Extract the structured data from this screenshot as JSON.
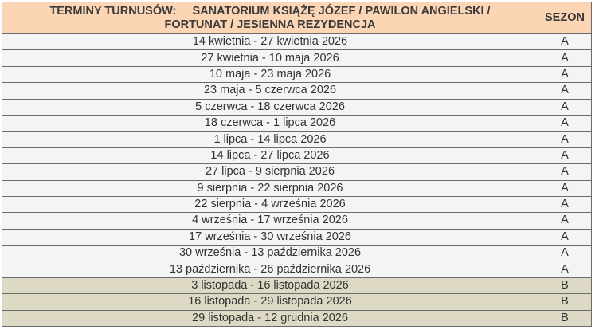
{
  "table": {
    "header": {
      "col1": "TERMINY TURNUSÓW:     SANATORIUM KSIĄŻĘ JÓZEF / PAWILON ANGIELSKI / FORTUNAT / JESIENNA REZYDENCJA",
      "col2": "SEZON"
    },
    "colors": {
      "header_bg": "#fcd5b4",
      "season_a_bg": "#f4f4f4",
      "season_b_bg": "#ddd9c4"
    },
    "rows": [
      {
        "dates": "14 kwietnia - 27 kwietnia 2026",
        "season": "A"
      },
      {
        "dates": "27 kwietnia - 10 maja 2026",
        "season": "A"
      },
      {
        "dates": "10 maja - 23 maja 2026",
        "season": "A"
      },
      {
        "dates": "23 maja - 5 czerwca 2026",
        "season": "A"
      },
      {
        "dates": "5 czerwca - 18 czerwca 2026",
        "season": "A"
      },
      {
        "dates": "18 czerwca - 1 lipca 2026",
        "season": "A"
      },
      {
        "dates": "1 lipca - 14 lipca 2026",
        "season": "A"
      },
      {
        "dates": "14 lipca - 27 lipca 2026",
        "season": "A"
      },
      {
        "dates": "27 lipca - 9 sierpnia 2026",
        "season": "A"
      },
      {
        "dates": "9 sierpnia - 22 sierpnia 2026",
        "season": "A"
      },
      {
        "dates": "22 sierpnia - 4 września 2026",
        "season": "A"
      },
      {
        "dates": "4 września - 17 września 2026",
        "season": "A"
      },
      {
        "dates": "17 września - 30 września 2026",
        "season": "A"
      },
      {
        "dates": "30 września - 13 października 2026",
        "season": "A"
      },
      {
        "dates": "13 października - 26 października 2026",
        "season": "A"
      },
      {
        "dates": "3 listopada - 16 listopada 2026",
        "season": "B"
      },
      {
        "dates": "16 listopada - 29 listopada 2026",
        "season": "B"
      },
      {
        "dates": "29 listopada - 12 grudnia 2026",
        "season": "B"
      }
    ]
  }
}
